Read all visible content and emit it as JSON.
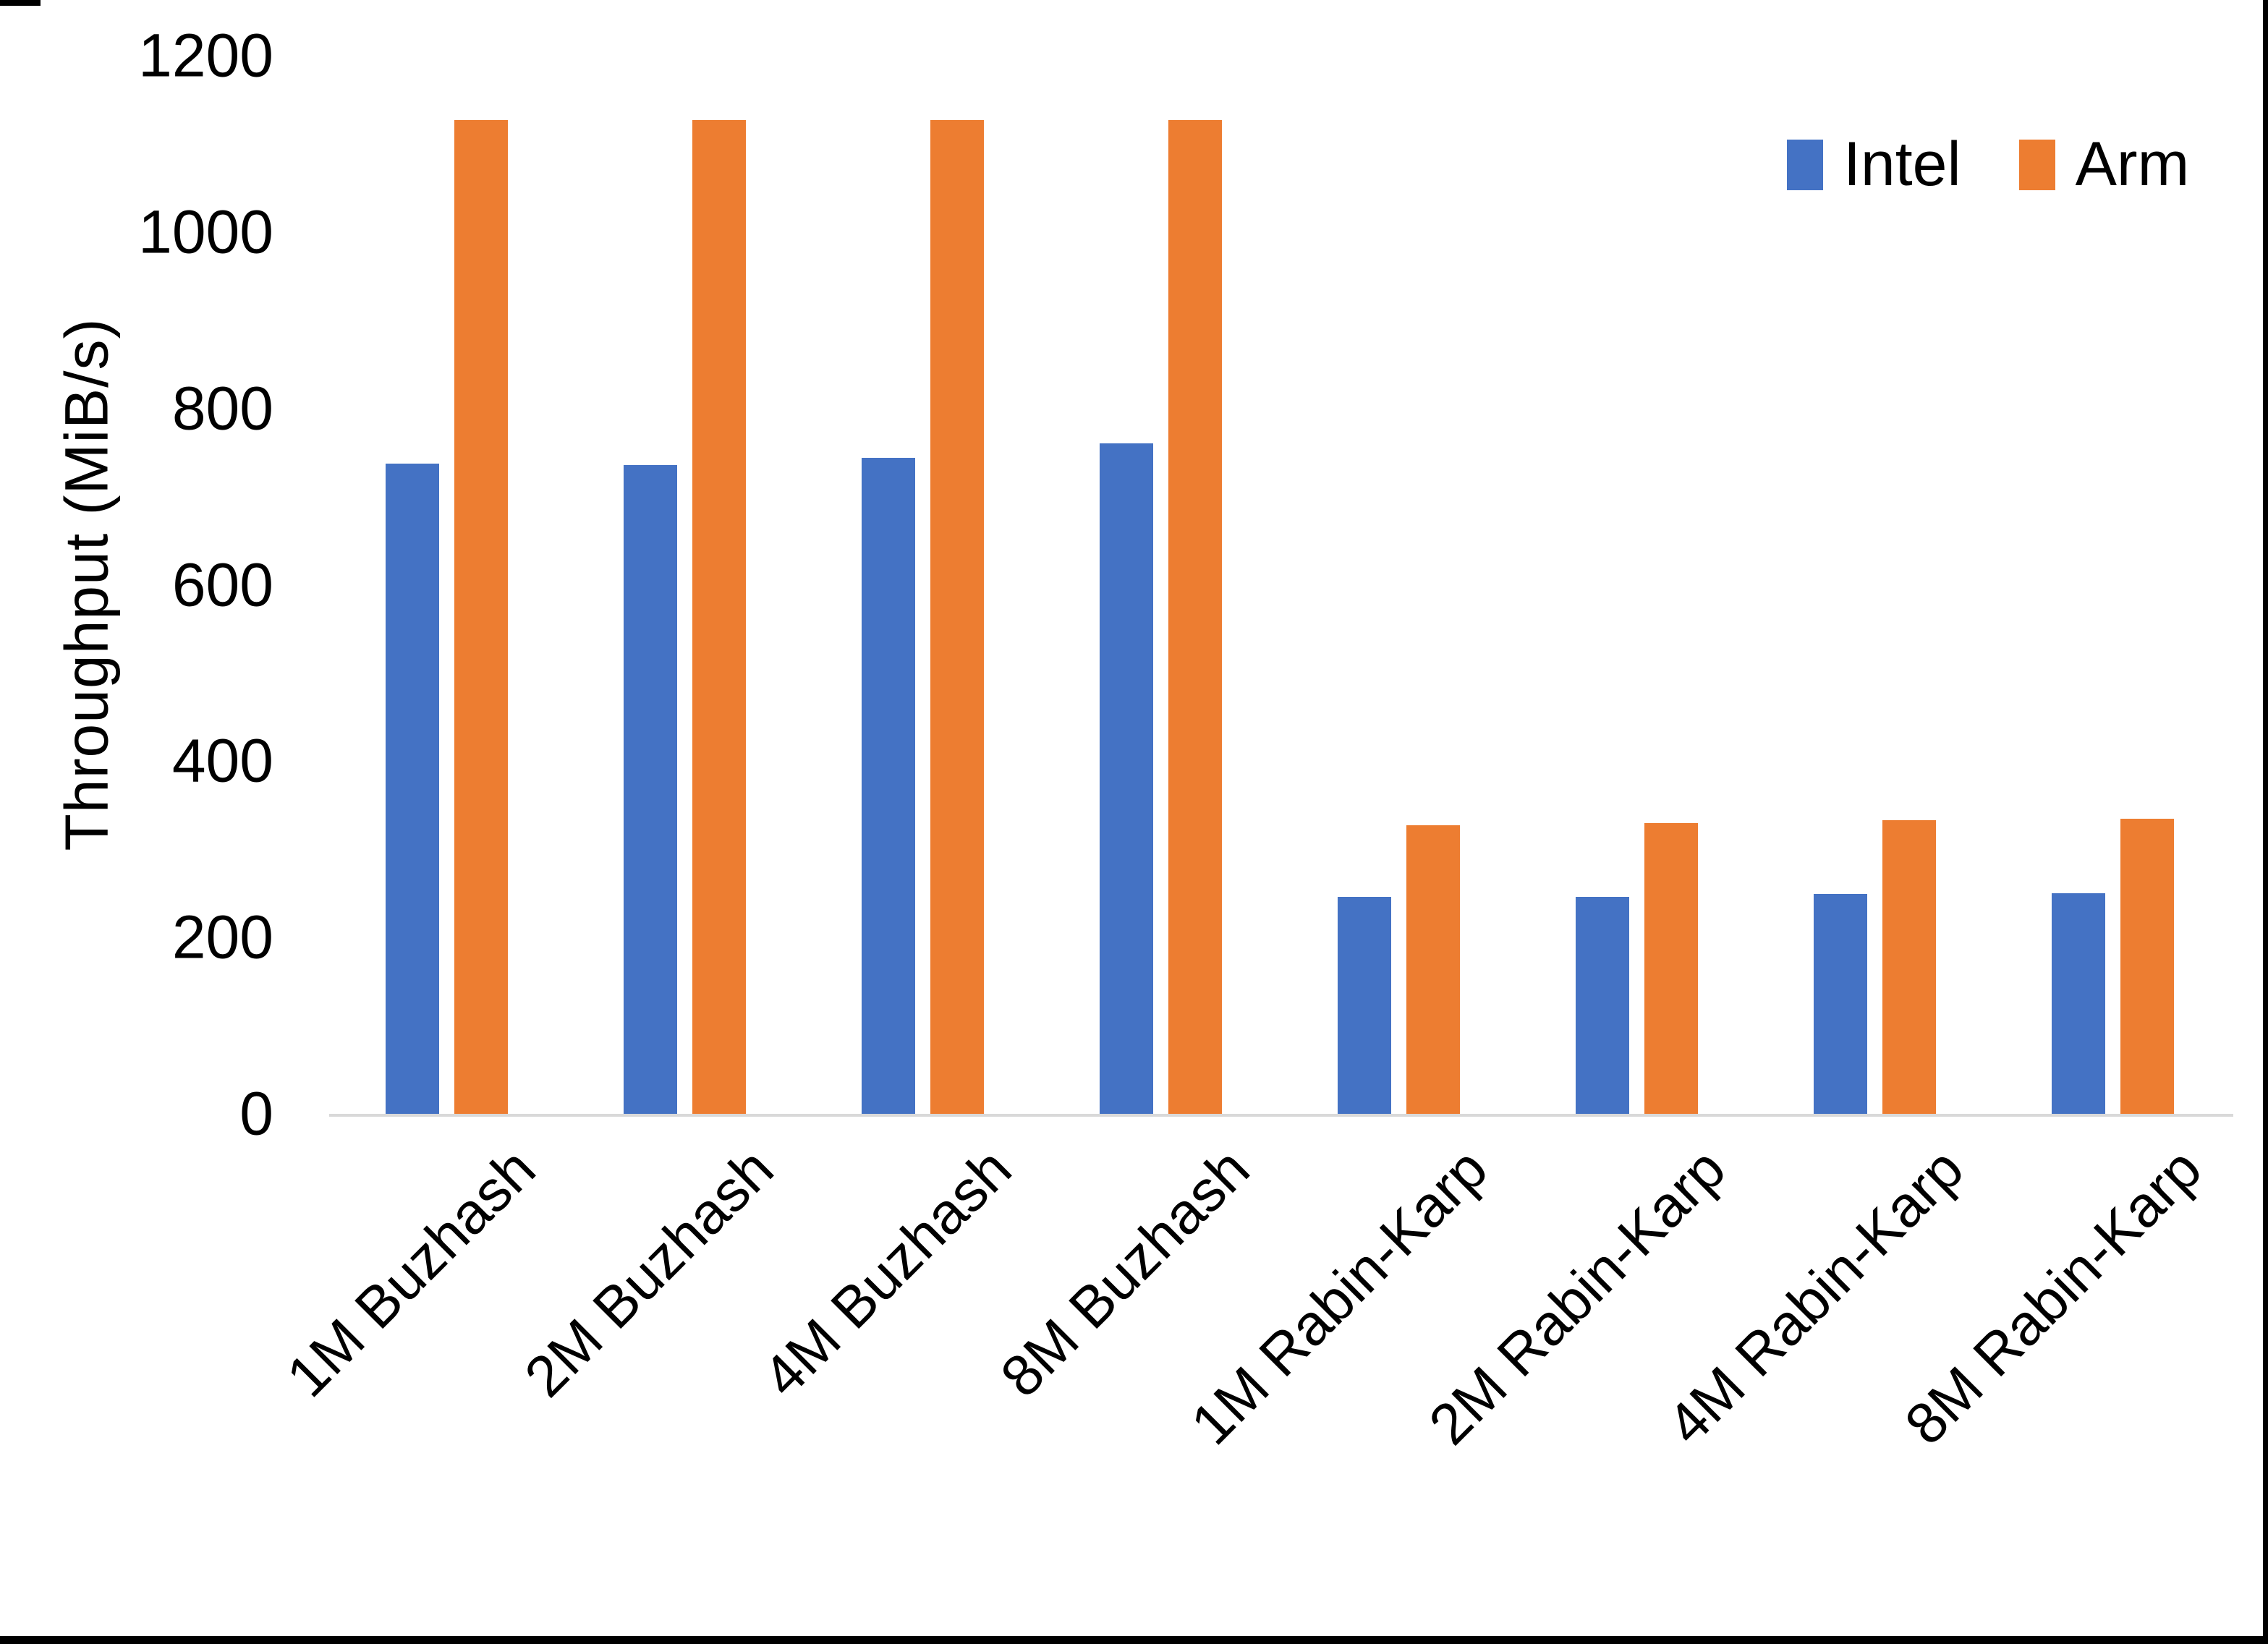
{
  "chart_data": {
    "type": "bar",
    "title": "",
    "xlabel": "",
    "ylabel": "Throughput (MiB/s)",
    "ylim": [
      0,
      1200
    ],
    "yticks": [
      0,
      200,
      400,
      600,
      800,
      1000,
      1200
    ],
    "grid": false,
    "legend_position": "top-right",
    "categories": [
      "1M Buzhash",
      "2M Buzhash",
      "4M Buzhash",
      "8M Buzhash",
      "1M Rabin-Karp",
      "2M Rabin-Karp",
      "4M Rabin-Karp",
      "8M Rabin-Karp"
    ],
    "series": [
      {
        "name": "Intel",
        "color": "#4472C4",
        "values": [
          737,
          736,
          744,
          760,
          246,
          246,
          249,
          250
        ]
      },
      {
        "name": "Arm",
        "color": "#ED7D31",
        "values": [
          1127,
          1127,
          1127,
          1127,
          327,
          330,
          333,
          335
        ]
      }
    ],
    "axis_line_color": "#D9D9D9",
    "text_color": "#000000"
  }
}
